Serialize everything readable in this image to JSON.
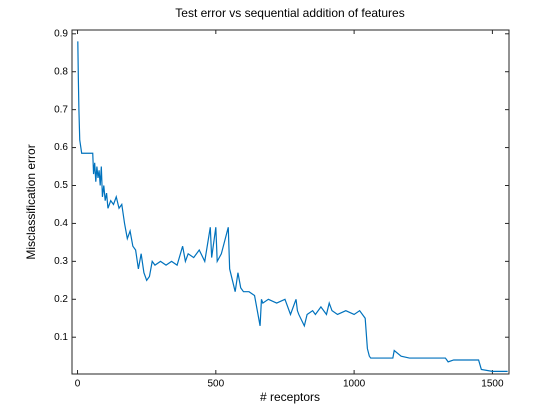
{
  "chart_data": {
    "type": "line",
    "title": "Test error vs sequential addition of features",
    "x_label": "# receptors",
    "y_label": "Misclassification error",
    "xlim": [
      -20,
      1560
    ],
    "ylim": [
      0.003,
      0.91
    ],
    "xticks": [
      0,
      500,
      1000,
      1500
    ],
    "yticks": [
      {
        "value": 0.1,
        "label": "0.1"
      },
      {
        "value": 0.2,
        "label": "0.2"
      },
      {
        "value": 0.3,
        "label": "0.3"
      },
      {
        "value": 0.4,
        "label": "0.4"
      },
      {
        "value": 0.5,
        "label": "0.5"
      },
      {
        "value": 0.6,
        "label": "0.6"
      },
      {
        "value": 0.7,
        "label": "0.7"
      },
      {
        "value": 0.8,
        "label": "0.8"
      },
      {
        "value": 0.9,
        "label": "0.9"
      }
    ],
    "grid": false,
    "series": [
      {
        "name": "Test error",
        "color": "#0072bd",
        "x": [
          1,
          3,
          5,
          8,
          12,
          15,
          55,
          58,
          62,
          66,
          70,
          74,
          78,
          82,
          86,
          90,
          95,
          100,
          105,
          110,
          120,
          130,
          140,
          150,
          160,
          170,
          175,
          180,
          190,
          200,
          210,
          220,
          230,
          240,
          250,
          260,
          270,
          280,
          300,
          320,
          340,
          360,
          380,
          390,
          400,
          420,
          440,
          460,
          480,
          485,
          500,
          505,
          520,
          545,
          550,
          560,
          570,
          580,
          590,
          600,
          620,
          640,
          660,
          665,
          670,
          690,
          720,
          750,
          770,
          790,
          795,
          800,
          820,
          830,
          850,
          860,
          880,
          900,
          910,
          920,
          940,
          970,
          1000,
          1020,
          1040,
          1048,
          1055,
          1060,
          1140,
          1145,
          1170,
          1200,
          1330,
          1340,
          1360,
          1450,
          1460,
          1500,
          1555
        ],
        "values": [
          0.88,
          0.78,
          0.7,
          0.62,
          0.6,
          0.585,
          0.585,
          0.53,
          0.56,
          0.51,
          0.55,
          0.52,
          0.54,
          0.5,
          0.55,
          0.47,
          0.5,
          0.46,
          0.48,
          0.44,
          0.46,
          0.45,
          0.47,
          0.44,
          0.45,
          0.4,
          0.38,
          0.36,
          0.38,
          0.34,
          0.33,
          0.28,
          0.32,
          0.27,
          0.25,
          0.26,
          0.3,
          0.29,
          0.3,
          0.29,
          0.3,
          0.29,
          0.34,
          0.3,
          0.32,
          0.31,
          0.33,
          0.3,
          0.39,
          0.31,
          0.39,
          0.3,
          0.32,
          0.39,
          0.28,
          0.25,
          0.22,
          0.27,
          0.23,
          0.22,
          0.22,
          0.21,
          0.13,
          0.2,
          0.19,
          0.2,
          0.19,
          0.2,
          0.16,
          0.2,
          0.17,
          0.16,
          0.13,
          0.16,
          0.17,
          0.16,
          0.18,
          0.16,
          0.19,
          0.17,
          0.16,
          0.17,
          0.16,
          0.17,
          0.15,
          0.07,
          0.05,
          0.045,
          0.045,
          0.065,
          0.05,
          0.045,
          0.045,
          0.035,
          0.04,
          0.04,
          0.015,
          0.01,
          0.01
        ]
      }
    ]
  }
}
